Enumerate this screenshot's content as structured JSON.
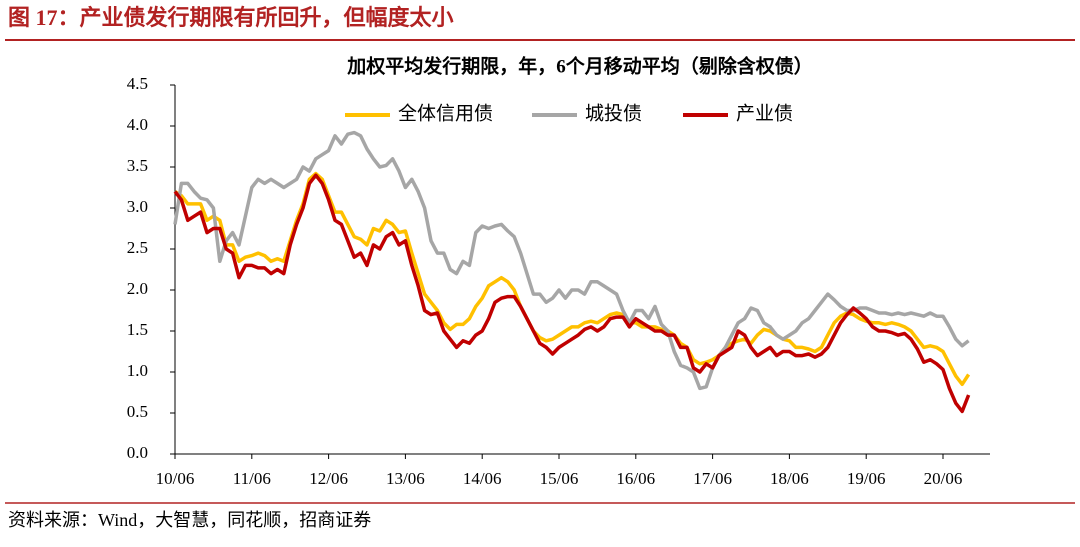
{
  "header": {
    "title": "图 17：产业债发行期限有所回升，但幅度太小"
  },
  "footer": {
    "source": "资料来源：Wind，大智慧，同花顺，招商证券"
  },
  "chart_data": {
    "type": "line",
    "title": "加权平均发行期限，年，6个月移动平均（剔除含权债）",
    "categories": [
      "10/06",
      null,
      null,
      null,
      null,
      null,
      null,
      null,
      null,
      null,
      null,
      null,
      "11/06",
      null,
      null,
      null,
      null,
      null,
      null,
      null,
      null,
      null,
      null,
      null,
      "12/06",
      null,
      null,
      null,
      null,
      null,
      null,
      null,
      null,
      null,
      null,
      null,
      "13/06",
      null,
      null,
      null,
      null,
      null,
      null,
      null,
      null,
      null,
      null,
      null,
      "14/06",
      null,
      null,
      null,
      null,
      null,
      null,
      null,
      null,
      null,
      null,
      null,
      "15/06",
      null,
      null,
      null,
      null,
      null,
      null,
      null,
      null,
      null,
      null,
      null,
      "16/06",
      null,
      null,
      null,
      null,
      null,
      null,
      null,
      null,
      null,
      null,
      null,
      "17/06",
      null,
      null,
      null,
      null,
      null,
      null,
      null,
      null,
      null,
      null,
      null,
      "18/06",
      null,
      null,
      null,
      null,
      null,
      null,
      null,
      null,
      null,
      null,
      null,
      "19/06",
      null,
      null,
      null,
      null,
      null,
      null,
      null,
      null,
      null,
      null,
      null,
      "20/06",
      null,
      null,
      null,
      null
    ],
    "series": [
      {
        "name": "全体信用债",
        "color": "#ffc000",
        "values": [
          3.2,
          3.15,
          3.05,
          3.05,
          3.05,
          2.85,
          2.9,
          2.85,
          2.55,
          2.55,
          2.35,
          2.4,
          2.42,
          2.45,
          2.42,
          2.35,
          2.38,
          2.35,
          2.6,
          2.85,
          3.05,
          3.35,
          3.42,
          3.35,
          3.15,
          2.95,
          2.95,
          2.8,
          2.65,
          2.62,
          2.55,
          2.75,
          2.72,
          2.85,
          2.8,
          2.7,
          2.72,
          2.45,
          2.2,
          1.95,
          1.85,
          1.75,
          1.6,
          1.52,
          1.58,
          1.58,
          1.65,
          1.8,
          1.9,
          2.05,
          2.1,
          2.15,
          2.1,
          2.0,
          1.8,
          1.65,
          1.5,
          1.42,
          1.38,
          1.4,
          1.45,
          1.5,
          1.55,
          1.55,
          1.6,
          1.62,
          1.6,
          1.65,
          1.7,
          1.72,
          1.7,
          1.6,
          1.6,
          1.55,
          1.55,
          1.55,
          1.52,
          1.5,
          1.45,
          1.35,
          1.3,
          1.15,
          1.1,
          1.12,
          1.15,
          1.2,
          1.3,
          1.35,
          1.38,
          1.4,
          1.35,
          1.45,
          1.52,
          1.5,
          1.45,
          1.4,
          1.38,
          1.3,
          1.3,
          1.28,
          1.25,
          1.3,
          1.45,
          1.6,
          1.68,
          1.72,
          1.7,
          1.65,
          1.62,
          1.6,
          1.6,
          1.58,
          1.6,
          1.58,
          1.55,
          1.5,
          1.4,
          1.3,
          1.32,
          1.3,
          1.25,
          1.1,
          0.95,
          0.85,
          0.97
        ]
      },
      {
        "name": "城投债",
        "color": "#a6a6a6",
        "values": [
          2.8,
          3.3,
          3.3,
          3.2,
          3.12,
          3.1,
          3.0,
          2.35,
          2.6,
          2.7,
          2.55,
          2.9,
          3.25,
          3.35,
          3.3,
          3.35,
          3.3,
          3.25,
          3.3,
          3.35,
          3.5,
          3.45,
          3.6,
          3.65,
          3.7,
          3.88,
          3.78,
          3.9,
          3.92,
          3.88,
          3.72,
          3.6,
          3.5,
          3.52,
          3.6,
          3.45,
          3.25,
          3.35,
          3.2,
          3.0,
          2.6,
          2.45,
          2.45,
          2.25,
          2.2,
          2.35,
          2.3,
          2.7,
          2.78,
          2.75,
          2.78,
          2.8,
          2.72,
          2.65,
          2.45,
          2.2,
          1.95,
          1.95,
          1.85,
          1.9,
          2.0,
          1.9,
          2.0,
          2.0,
          1.95,
          2.1,
          2.1,
          2.05,
          2.0,
          1.95,
          1.75,
          1.6,
          1.75,
          1.75,
          1.65,
          1.8,
          1.58,
          1.5,
          1.25,
          1.08,
          1.05,
          1.0,
          0.8,
          0.82,
          1.05,
          1.2,
          1.3,
          1.45,
          1.6,
          1.65,
          1.78,
          1.75,
          1.6,
          1.55,
          1.45,
          1.4,
          1.45,
          1.5,
          1.6,
          1.65,
          1.75,
          1.85,
          1.95,
          1.88,
          1.8,
          1.75,
          1.75,
          1.78,
          1.78,
          1.75,
          1.72,
          1.72,
          1.7,
          1.72,
          1.7,
          1.72,
          1.7,
          1.68,
          1.72,
          1.68,
          1.68,
          1.55,
          1.4,
          1.32,
          1.38
        ]
      },
      {
        "name": "产业债",
        "color": "#c00000",
        "values": [
          3.2,
          3.1,
          2.85,
          2.9,
          2.95,
          2.7,
          2.75,
          2.75,
          2.5,
          2.45,
          2.15,
          2.3,
          2.3,
          2.27,
          2.27,
          2.2,
          2.25,
          2.2,
          2.55,
          2.8,
          3.0,
          3.3,
          3.4,
          3.3,
          3.1,
          2.85,
          2.8,
          2.6,
          2.4,
          2.45,
          2.3,
          2.55,
          2.5,
          2.65,
          2.7,
          2.55,
          2.6,
          2.3,
          2.05,
          1.75,
          1.7,
          1.72,
          1.5,
          1.4,
          1.3,
          1.38,
          1.35,
          1.45,
          1.5,
          1.65,
          1.85,
          1.9,
          1.92,
          1.92,
          1.8,
          1.65,
          1.5,
          1.35,
          1.3,
          1.22,
          1.3,
          1.35,
          1.4,
          1.45,
          1.52,
          1.55,
          1.5,
          1.55,
          1.65,
          1.67,
          1.67,
          1.55,
          1.65,
          1.6,
          1.55,
          1.5,
          1.5,
          1.45,
          1.45,
          1.3,
          1.3,
          1.05,
          1.0,
          1.1,
          1.05,
          1.2,
          1.25,
          1.3,
          1.5,
          1.45,
          1.3,
          1.2,
          1.25,
          1.3,
          1.2,
          1.25,
          1.25,
          1.2,
          1.2,
          1.22,
          1.18,
          1.22,
          1.3,
          1.45,
          1.6,
          1.7,
          1.78,
          1.72,
          1.65,
          1.55,
          1.5,
          1.5,
          1.48,
          1.45,
          1.47,
          1.4,
          1.28,
          1.12,
          1.15,
          1.1,
          1.03,
          0.8,
          0.62,
          0.52,
          0.72
        ]
      }
    ],
    "ylim": [
      0,
      4.5
    ],
    "yticks": [
      {
        "value": 0,
        "label": "0.0"
      },
      0.5,
      {
        "value": 1,
        "label": "1.0"
      },
      1.5,
      {
        "value": 2,
        "label": "2.0"
      },
      2.5,
      {
        "value": 3,
        "label": "3.0"
      },
      3.5,
      {
        "value": 4,
        "label": "4.0"
      },
      4.5
    ],
    "legend": "top"
  }
}
